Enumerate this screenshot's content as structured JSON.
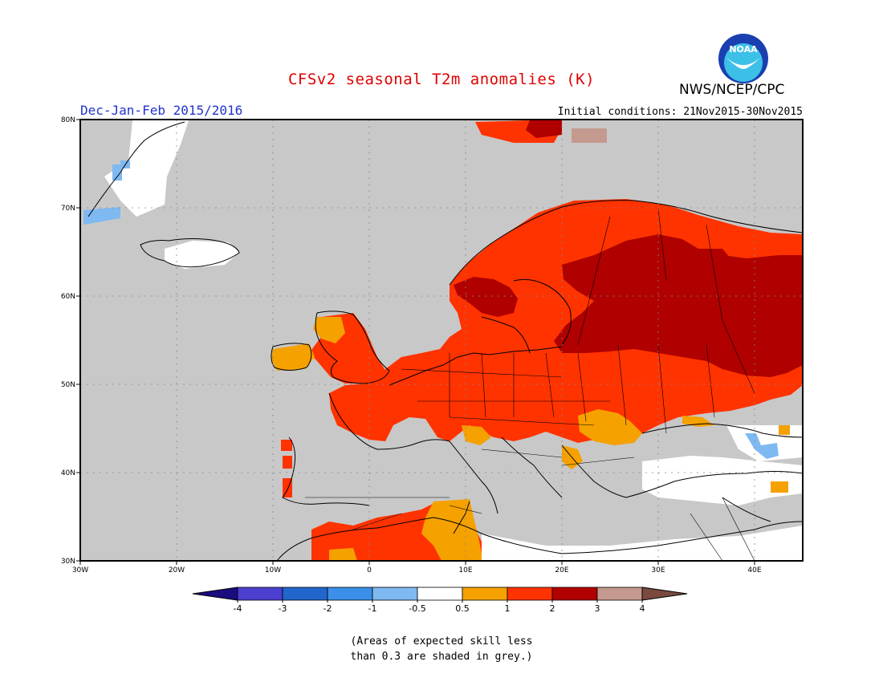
{
  "title": "CFSv2 seasonal T2m anomalies (K)",
  "agency": "NWS/NCEP/CPC",
  "logo": {
    "text": "NOAA",
    "colors": {
      "outer": "#1a3fb0",
      "inner": "#3cc0e8",
      "bird": "#ffffff"
    }
  },
  "season": "Dec-Jan-Feb 2015/2016",
  "initial_conditions": "Initial conditions: 21Nov2015-30Nov2015",
  "map": {
    "lon_range": [
      -30,
      45
    ],
    "lat_range": [
      30,
      80
    ],
    "x_ticks": [
      "30W",
      "20W",
      "10W",
      "0",
      "10E",
      "20E",
      "30E",
      "40E"
    ],
    "y_ticks": [
      "30N",
      "40N",
      "50N",
      "60N",
      "70N",
      "80N"
    ],
    "grid_color": "#888888"
  },
  "colorbar": {
    "labels": [
      "-4",
      "-3",
      "-2",
      "-1",
      "-0.5",
      "0.5",
      "1",
      "2",
      "3",
      "4"
    ],
    "colors": [
      "#1a0d80",
      "#4b3fcf",
      "#2266cc",
      "#3b8fe8",
      "#7fb9f2",
      "#ffffff",
      "#f5a100",
      "#ff3300",
      "#b00000",
      "#c49a8e",
      "#7a4a3e"
    ]
  },
  "note_line1": "(Areas of expected skill less",
  "note_line2": "than 0.3 are shaded in grey.)"
}
